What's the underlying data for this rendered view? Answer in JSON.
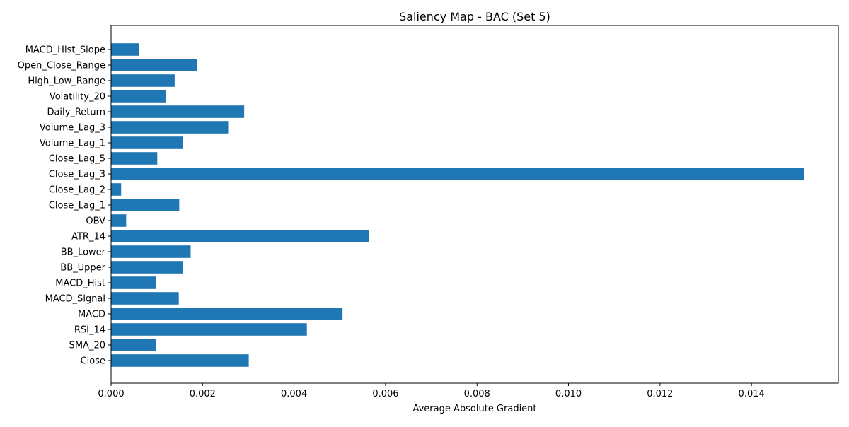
{
  "chart_data": {
    "type": "bar",
    "orientation": "horizontal",
    "title": "Saliency Map - BAC (Set 5)",
    "xlabel": "Average Absolute Gradient",
    "ylabel": "",
    "xlim": [
      0,
      0.0159
    ],
    "x_ticks": [
      0,
      0.002,
      0.004,
      0.006,
      0.008,
      0.01,
      0.012,
      0.014
    ],
    "x_tick_labels": [
      "0.000",
      "0.002",
      "0.004",
      "0.006",
      "0.008",
      "0.010",
      "0.012",
      "0.014"
    ],
    "grid": false,
    "bar_color": "#1f77b4",
    "categories": [
      "Close",
      "SMA_20",
      "RSI_14",
      "MACD",
      "MACD_Signal",
      "MACD_Hist",
      "BB_Upper",
      "BB_Lower",
      "ATR_14",
      "OBV",
      "Close_Lag_1",
      "Close_Lag_2",
      "Close_Lag_3",
      "Close_Lag_5",
      "Volume_Lag_1",
      "Volume_Lag_3",
      "Daily_Return",
      "Volatility_20",
      "High_Low_Range",
      "Open_Close_Range",
      "MACD_Hist_Slope"
    ],
    "values": [
      0.00301,
      0.00098,
      0.00428,
      0.00506,
      0.00148,
      0.00098,
      0.00157,
      0.00174,
      0.00564,
      0.00033,
      0.00149,
      0.00022,
      0.01515,
      0.00101,
      0.00157,
      0.00256,
      0.00291,
      0.0012,
      0.00139,
      0.00188,
      0.00061
    ]
  }
}
